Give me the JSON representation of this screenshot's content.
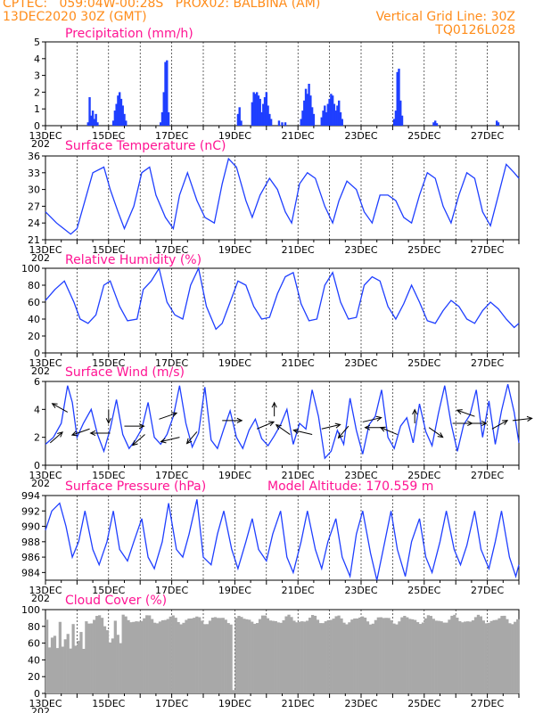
{
  "header": {
    "line1_left": "CPTEC:   059:04W-00:28S   PROX02: BALBINA (AM)",
    "line2_left": "13DEC2020 30Z (GMT)",
    "line2_right": "Vertical Grid Line: 30Z",
    "line3_right": "TQ0126L028"
  },
  "x_labels": [
    "13DEC",
    "15DEC",
    "17DEC",
    "19DEC",
    "21DEC",
    "23DEC",
    "25DEC",
    "27DEC"
  ],
  "x_sublabel": "202",
  "colors": {
    "line": "#1f3fff",
    "title": "#ff1493",
    "header": "#ff8c1a",
    "cloud": "#a8a8a8",
    "wind": "#000000"
  },
  "chart_data": [
    {
      "type": "bar",
      "title": "Precipitation (mm/h)",
      "ylim": [
        0,
        5
      ],
      "yticks": [
        0,
        1,
        2,
        3,
        4,
        5
      ],
      "x_range_days": [
        0,
        15
      ],
      "bars": [
        [
          1.35,
          0.2
        ],
        [
          1.4,
          1.7
        ],
        [
          1.45,
          0.6
        ],
        [
          1.5,
          0.9
        ],
        [
          1.55,
          0.4
        ],
        [
          1.6,
          0.7
        ],
        [
          1.65,
          0.2
        ],
        [
          2.15,
          0.3
        ],
        [
          2.2,
          0.9
        ],
        [
          2.25,
          1.3
        ],
        [
          2.3,
          1.8
        ],
        [
          2.35,
          2.0
        ],
        [
          2.4,
          1.6
        ],
        [
          2.45,
          1.2
        ],
        [
          2.5,
          0.7
        ],
        [
          2.55,
          0.3
        ],
        [
          3.65,
          0.2
        ],
        [
          3.7,
          0.8
        ],
        [
          3.75,
          2.0
        ],
        [
          3.8,
          3.8
        ],
        [
          3.85,
          3.9
        ],
        [
          3.9,
          0.8
        ],
        [
          6.1,
          0.7
        ],
        [
          6.15,
          1.1
        ],
        [
          6.2,
          0.3
        ],
        [
          6.55,
          1.4
        ],
        [
          6.6,
          2.0
        ],
        [
          6.65,
          1.9
        ],
        [
          6.7,
          2.0
        ],
        [
          6.75,
          1.8
        ],
        [
          6.8,
          1.6
        ],
        [
          6.85,
          0.8
        ],
        [
          6.9,
          1.3
        ],
        [
          6.95,
          1.7
        ],
        [
          7.0,
          2.0
        ],
        [
          7.05,
          1.2
        ],
        [
          7.1,
          0.7
        ],
        [
          7.15,
          0.4
        ],
        [
          7.4,
          0.3
        ],
        [
          7.5,
          0.2
        ],
        [
          7.6,
          0.2
        ],
        [
          8.1,
          0.4
        ],
        [
          8.15,
          0.9
        ],
        [
          8.2,
          1.5
        ],
        [
          8.25,
          2.2
        ],
        [
          8.3,
          1.9
        ],
        [
          8.35,
          2.5
        ],
        [
          8.4,
          1.8
        ],
        [
          8.45,
          1.1
        ],
        [
          8.5,
          0.7
        ],
        [
          8.75,
          0.5
        ],
        [
          8.8,
          0.9
        ],
        [
          8.85,
          1.2
        ],
        [
          8.9,
          0.8
        ],
        [
          8.95,
          1.3
        ],
        [
          9.0,
          1.6
        ],
        [
          9.05,
          1.9
        ],
        [
          9.1,
          1.8
        ],
        [
          9.15,
          1.3
        ],
        [
          9.2,
          0.9
        ],
        [
          9.25,
          1.2
        ],
        [
          9.3,
          1.5
        ],
        [
          9.35,
          0.8
        ],
        [
          9.4,
          0.4
        ],
        [
          11.05,
          0.4
        ],
        [
          11.1,
          0.9
        ],
        [
          11.15,
          3.2
        ],
        [
          11.2,
          3.4
        ],
        [
          11.25,
          1.5
        ],
        [
          11.3,
          0.6
        ],
        [
          12.3,
          0.2
        ],
        [
          12.35,
          0.3
        ],
        [
          12.4,
          0.15
        ],
        [
          14.3,
          0.3
        ],
        [
          14.35,
          0.2
        ]
      ]
    },
    {
      "type": "line",
      "title": "Surface Temperature (nC)",
      "ylim": [
        21,
        36
      ],
      "yticks": [
        21,
        24,
        27,
        30,
        33,
        36
      ],
      "x": [
        0,
        0.35,
        0.8,
        1.0,
        1.25,
        1.5,
        1.85,
        2.05,
        2.3,
        2.5,
        2.8,
        3.05,
        3.3,
        3.5,
        3.8,
        4.05,
        4.25,
        4.5,
        4.8,
        5.05,
        5.35,
        5.6,
        5.8,
        6.05,
        6.35,
        6.55,
        6.8,
        7.1,
        7.35,
        7.6,
        7.8,
        8.05,
        8.3,
        8.55,
        8.85,
        9.1,
        9.3,
        9.55,
        9.85,
        10.1,
        10.35,
        10.6,
        10.85,
        11.1,
        11.35,
        11.6,
        11.85,
        12.1,
        12.35,
        12.6,
        12.85,
        13.1,
        13.35,
        13.6,
        13.85,
        14.1,
        14.35,
        14.6,
        14.85,
        15.0
      ],
      "values": [
        26,
        24,
        22,
        23,
        28,
        33,
        34,
        30,
        26,
        23,
        27,
        33,
        34,
        29,
        25,
        23,
        29,
        33,
        28,
        25,
        24,
        31,
        35.5,
        34,
        28,
        25,
        29,
        32,
        30,
        26,
        24,
        31,
        33,
        32,
        27,
        24,
        28,
        31.5,
        30,
        26,
        24,
        29,
        29,
        28,
        25,
        24,
        29,
        33,
        32,
        27,
        24,
        29,
        33,
        32,
        26,
        23.5,
        29,
        34.5,
        33,
        32
      ]
    },
    {
      "type": "line",
      "title": "Relative Humidity (%)",
      "ylim": [
        0,
        100
      ],
      "yticks": [
        0,
        20,
        40,
        60,
        80,
        100
      ],
      "x": [
        0,
        0.3,
        0.6,
        0.9,
        1.1,
        1.35,
        1.6,
        1.85,
        2.05,
        2.35,
        2.6,
        2.9,
        3.1,
        3.35,
        3.6,
        3.85,
        4.1,
        4.35,
        4.6,
        4.85,
        5.1,
        5.4,
        5.6,
        5.85,
        6.1,
        6.35,
        6.6,
        6.85,
        7.1,
        7.35,
        7.6,
        7.85,
        8.1,
        8.35,
        8.6,
        8.85,
        9.1,
        9.35,
        9.6,
        9.85,
        10.1,
        10.35,
        10.6,
        10.85,
        11.1,
        11.35,
        11.6,
        11.85,
        12.1,
        12.35,
        12.6,
        12.85,
        13.1,
        13.35,
        13.6,
        13.85,
        14.1,
        14.35,
        14.6,
        14.85,
        15.0
      ],
      "values": [
        62,
        75,
        85,
        60,
        40,
        35,
        45,
        80,
        85,
        55,
        38,
        40,
        75,
        85,
        100,
        60,
        45,
        40,
        80,
        100,
        55,
        28,
        35,
        60,
        85,
        80,
        55,
        40,
        42,
        70,
        90,
        95,
        58,
        38,
        40,
        80,
        95,
        60,
        40,
        42,
        80,
        90,
        85,
        55,
        40,
        58,
        80,
        60,
        38,
        35,
        50,
        62,
        55,
        40,
        35,
        50,
        60,
        52,
        40,
        30,
        35
      ]
    },
    {
      "type": "line",
      "title": "Surface Wind (m/s)",
      "ylim": [
        0,
        6
      ],
      "yticks": [
        0,
        2,
        4,
        6
      ],
      "x": [
        0,
        0.25,
        0.5,
        0.7,
        0.85,
        1.0,
        1.2,
        1.45,
        1.65,
        1.85,
        2.05,
        2.25,
        2.45,
        2.65,
        2.85,
        3.05,
        3.25,
        3.45,
        3.65,
        3.85,
        4.05,
        4.25,
        4.45,
        4.65,
        4.85,
        5.05,
        5.25,
        5.45,
        5.65,
        5.85,
        6.05,
        6.25,
        6.45,
        6.65,
        6.85,
        7.05,
        7.25,
        7.45,
        7.65,
        7.85,
        8.05,
        8.25,
        8.45,
        8.65,
        8.85,
        9.05,
        9.25,
        9.45,
        9.65,
        9.85,
        10.05,
        10.25,
        10.45,
        10.65,
        10.85,
        11.05,
        11.25,
        11.45,
        11.65,
        11.85,
        12.05,
        12.25,
        12.45,
        12.65,
        12.85,
        13.05,
        13.25,
        13.45,
        13.65,
        13.85,
        14.05,
        14.25,
        14.45,
        14.65,
        14.85,
        15.0
      ],
      "values": [
        1.5,
        2.0,
        3.0,
        5.7,
        4.5,
        2.0,
        3.0,
        4.0,
        2.2,
        1.0,
        2.6,
        4.7,
        2.2,
        1.2,
        1.8,
        2.6,
        4.5,
        2.0,
        1.5,
        2.2,
        3.5,
        5.7,
        3.0,
        1.3,
        2.3,
        5.6,
        1.8,
        1.2,
        2.6,
        3.9,
        2.0,
        1.2,
        2.5,
        3.3,
        1.9,
        1.4,
        2.1,
        2.9,
        4.0,
        1.5,
        3.0,
        2.6,
        5.4,
        3.5,
        0.5,
        1.0,
        2.5,
        1.5,
        4.8,
        2.5,
        0.8,
        2.9,
        3.5,
        5.4,
        2.0,
        1.2,
        2.8,
        3.4,
        1.6,
        4.4,
        2.4,
        1.4,
        3.7,
        5.7,
        3.0,
        1.0,
        2.9,
        3.6,
        5.4,
        2.0,
        4.6,
        1.5,
        3.9,
        5.8,
        3.8,
        1.6
      ],
      "arrows": [
        [
          0.15,
          1.6,
          4,
          -5
        ],
        [
          0.7,
          3.8,
          -5,
          -4
        ],
        [
          1.4,
          2.6,
          -4,
          2
        ],
        [
          2.0,
          4.0,
          0,
          6
        ],
        [
          2.05,
          2.3,
          -6,
          0
        ],
        [
          2.5,
          2.8,
          6,
          0
        ],
        [
          3.15,
          2.2,
          -4,
          5
        ],
        [
          3.6,
          3.3,
          6,
          -3
        ],
        [
          4.25,
          2.0,
          -6,
          2
        ],
        [
          4.8,
          2.4,
          -3,
          5
        ],
        [
          5.6,
          3.2,
          6,
          0
        ],
        [
          6.7,
          2.6,
          5,
          -3
        ],
        [
          7.25,
          3.5,
          0,
          -6
        ],
        [
          7.75,
          2.2,
          -5,
          -5
        ],
        [
          8.45,
          2.2,
          -6,
          -2
        ],
        [
          8.75,
          2.6,
          6,
          -2
        ],
        [
          9.6,
          2.8,
          -3,
          5
        ],
        [
          10.05,
          3.1,
          6,
          -2
        ],
        [
          10.75,
          2.7,
          -6,
          0
        ],
        [
          11.15,
          2.2,
          -5,
          -3
        ],
        [
          11.7,
          3.0,
          0,
          -6
        ],
        [
          12.15,
          2.7,
          4,
          4
        ],
        [
          12.9,
          3.0,
          6,
          0
        ],
        [
          13.35,
          3.0,
          6,
          0
        ],
        [
          13.6,
          3.5,
          -6,
          -3
        ],
        [
          14.15,
          2.6,
          5,
          -4
        ],
        [
          14.8,
          3.2,
          6,
          -1
        ]
      ]
    },
    {
      "type": "line",
      "title": "Surface Pressure (hPa)",
      "annotation": "Model Altitude: 170.559 m",
      "ylim": [
        983,
        994
      ],
      "yticks": [
        984,
        986,
        988,
        990,
        992,
        994
      ],
      "x": [
        0,
        0.2,
        0.45,
        0.65,
        0.85,
        1.05,
        1.25,
        1.5,
        1.7,
        1.95,
        2.15,
        2.35,
        2.6,
        2.8,
        3.05,
        3.25,
        3.45,
        3.7,
        3.9,
        4.15,
        4.35,
        4.55,
        4.8,
        5.0,
        5.25,
        5.45,
        5.65,
        5.9,
        6.1,
        6.35,
        6.55,
        6.75,
        7.0,
        7.2,
        7.45,
        7.65,
        7.85,
        8.1,
        8.3,
        8.55,
        8.75,
        8.95,
        9.2,
        9.4,
        9.65,
        9.85,
        10.05,
        10.3,
        10.5,
        10.75,
        10.95,
        11.15,
        11.4,
        11.6,
        11.85,
        12.05,
        12.25,
        12.5,
        12.7,
        12.95,
        13.15,
        13.35,
        13.6,
        13.8,
        14.05,
        14.25,
        14.45,
        14.7,
        14.9,
        15.0
      ],
      "values": [
        989.5,
        992,
        993,
        990,
        986,
        988,
        992,
        987,
        985,
        988,
        992,
        987,
        985.5,
        988,
        991,
        986,
        984.5,
        988,
        993,
        987,
        986,
        989,
        993.5,
        986,
        985,
        989,
        992,
        987,
        984.5,
        988,
        991,
        987,
        985.5,
        989,
        992,
        986,
        984,
        988,
        992,
        987,
        984.5,
        988,
        991,
        986,
        983.5,
        989,
        992,
        986.5,
        983,
        988,
        992,
        987,
        983.5,
        988,
        991,
        986,
        984,
        988,
        992,
        987,
        985,
        987.5,
        992,
        987,
        984.5,
        988,
        992,
        986,
        983.5,
        985
      ]
    },
    {
      "type": "bar",
      "title": "Cloud Cover (%)",
      "ylim": [
        0,
        100
      ],
      "yticks": [
        0,
        20,
        40,
        60,
        80,
        100
      ],
      "x_range_days": [
        0,
        15
      ]
    }
  ]
}
